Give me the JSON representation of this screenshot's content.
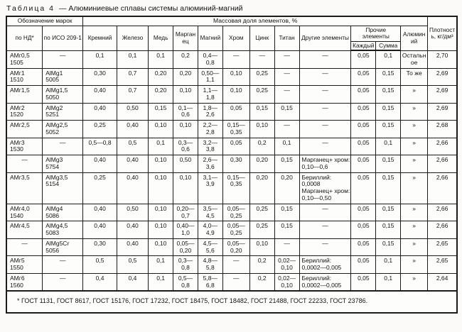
{
  "title": {
    "prefix": "Таблица 4",
    "text": "— Алюминиевые сплавы системы алюминий-магний"
  },
  "table": {
    "header": {
      "designation": "Обозначение марок",
      "mass_fraction": "Массовая доля элементов, %",
      "density": "Плотность, кг/дм³",
      "nd": "по НД*",
      "iso": "по ИСО 209-1",
      "si": "Кремний",
      "fe": "Железо",
      "cu": "Медь",
      "mn": "Марганец",
      "mg": "Магний",
      "cr": "Хром",
      "zn": "Цинк",
      "ti": "Титан",
      "other": "Другие элементы",
      "other_elements_group": "Прочие элементы",
      "each": "Каждый",
      "sum": "Сумма",
      "al": "Алюминий"
    },
    "col_keys": [
      "nd",
      "iso",
      "si",
      "fe",
      "cu",
      "mn",
      "mg",
      "cr",
      "zn",
      "ti",
      "other",
      "each",
      "sum",
      "al",
      "density"
    ],
    "rows": [
      [
        "АМг0,5\n1505",
        "—",
        "0,1",
        "0,1",
        "0,1",
        "0,2",
        "0,4—0,8",
        "—",
        "—",
        "—",
        "—",
        "0,05",
        "0,1",
        "Остальное",
        "2,70"
      ],
      [
        "АМг1\n1510",
        "AlMg1\n5005",
        "0,30",
        "0,7",
        "0,20",
        "0,20",
        "0,50—1,1",
        "0,10",
        "0,25",
        "—",
        "—",
        "0,05",
        "0,15",
        "То же",
        "2,69"
      ],
      [
        "АМг1,5",
        "AlMg1,5\n5050",
        "0,40",
        "0,7",
        "0,20",
        "0,10",
        "1,1—1,8",
        "0,10",
        "0,25",
        "—",
        "—",
        "0,05",
        "0,15",
        "»",
        "2,69"
      ],
      [
        "АМг2\n1520",
        "AlMg2\n5251",
        "0,40",
        "0,50",
        "0,15",
        "0,1—0,6",
        "1,8—2,6",
        "0,05",
        "0,15",
        "0,15",
        "—",
        "0,05",
        "0,15",
        "»",
        "2,69"
      ],
      [
        "АМг2,5",
        "AlMg2,5\n5052",
        "0,25",
        "0,40",
        "0,10",
        "0,10",
        "2,2—2,8",
        "0,15—0,35",
        "0,10",
        "—",
        "—",
        "0,05",
        "0,15",
        "»",
        "2,68"
      ],
      [
        "АМг3\n1530",
        "—",
        "0,5—0,8",
        "0,5",
        "0,1",
        "0,3—0,6",
        "3,2—3,8",
        "0,05",
        "0,2",
        "0,1",
        "—",
        "0,05",
        "0,1",
        "»",
        "2,66"
      ],
      [
        "—",
        "AlMg3\n5754",
        "0,40",
        "0,40",
        "0,10",
        "0,50",
        "2,6—3,6",
        "0,30",
        "0,20",
        "0,15",
        "Марганец+ хром: 0,10—0,6",
        "0,05",
        "0,15",
        "»",
        "2,66"
      ],
      [
        "АМг3,5",
        "AlMg3,5\n5154",
        "0,25",
        "0,40",
        "0,10",
        "0,10",
        "3,1—3,9",
        "0,15—0,35",
        "0,20",
        "0,20",
        "Бериллий: 0,0008\nМарганец+ хром: 0,10—0,50",
        "0,05",
        "0,15",
        "»",
        "2,66"
      ],
      [
        "АМг4,0\n1540",
        "AlMg4\n5086",
        "0,40",
        "0,50",
        "0,10",
        "0,20—0,7",
        "3,5—4,5",
        "0,05—0,25",
        "0,25",
        "0,15",
        "—",
        "0,05",
        "0,15",
        "»",
        "2,66"
      ],
      [
        "АМг4,5",
        "AlMg4,5\n5083",
        "0,40",
        "0,40",
        "0,10",
        "0,40—1,0",
        "4,0—4,9",
        "0,05—0,25",
        "0,25",
        "0,15",
        "—",
        "0,05",
        "0,15",
        "»",
        "2,66"
      ],
      [
        "—",
        "AlMg5Cr\n5056",
        "0,30",
        "0,40",
        "0,10",
        "0,05—0,20",
        "4,5—5,6",
        "0,05—0,20",
        "0,10",
        "—",
        "—",
        "0,05",
        "0,15",
        "»",
        "2,65"
      ],
      [
        "АМг5\n1550",
        "—",
        "0,5",
        "0,5",
        "0,1",
        "0,3—0,8",
        "4,8—5,8",
        "—",
        "0,2",
        "0,02—0,10",
        "Бериллий: 0,0002—0,005",
        "0,05",
        "0,1",
        "»",
        "2,65"
      ],
      [
        "АМг6\n1560",
        "—",
        "0,4",
        "0,4",
        "0,1",
        "0,5—0,8",
        "5,8—6,8",
        "—",
        "0,2",
        "0,02—0,10",
        "Бериллий: 0,0002—0,005",
        "0,05",
        "0,1",
        "»",
        "2,64"
      ]
    ]
  },
  "footnote": "* ГОСТ 1131, ГОСТ 8617, ГОСТ 15176, ГОСТ 17232, ГОСТ 18475, ГОСТ 18482, ГОСТ 21488, ГОСТ 22233, ГОСТ 23786."
}
